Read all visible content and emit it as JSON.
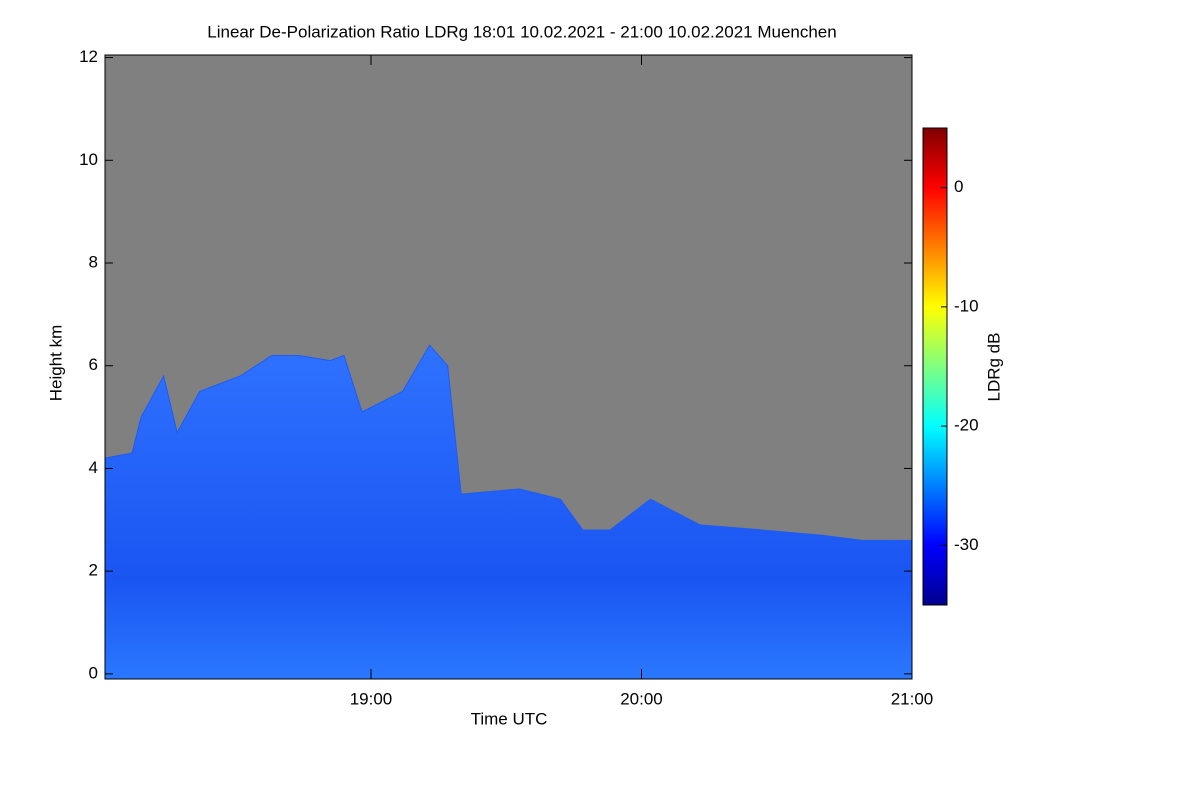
{
  "chart_data": {
    "type": "heatmap",
    "title": "Linear De-Polarization Ratio LDRg   18:01 10.02.2021 - 21:00 10.02.2021 Muenchen",
    "xlabel": "Time UTC",
    "ylabel": "Height km",
    "xlim": [
      1081,
      1260
    ],
    "xticks": [
      {
        "value": 1140,
        "label": "19:00"
      },
      {
        "value": 1200,
        "label": "20:00"
      },
      {
        "value": 1260,
        "label": "21:00"
      }
    ],
    "ylim": [
      -0.1,
      12.05
    ],
    "yticks": [
      0,
      2,
      4,
      6,
      8,
      10,
      12
    ],
    "background_color": "#808080",
    "x": [
      1081,
      1087,
      1089,
      1094,
      1097,
      1102,
      1111,
      1118,
      1124,
      1131,
      1134,
      1138,
      1147,
      1153,
      1157,
      1160,
      1173,
      1182,
      1187,
      1193,
      1202,
      1213,
      1227,
      1240,
      1249,
      1260
    ],
    "values": [
      4.2,
      4.3,
      5.0,
      5.8,
      4.7,
      5.5,
      5.8,
      6.2,
      6.2,
      6.1,
      6.2,
      5.1,
      5.5,
      6.4,
      6.0,
      3.5,
      3.6,
      3.4,
      2.8,
      2.8,
      3.4,
      2.9,
      2.8,
      2.7,
      2.6,
      2.6
    ],
    "color": "#1e5cf5",
    "colorbar": {
      "label": "LDRg dB",
      "clim": [
        -35,
        5
      ],
      "ticks": [
        0,
        -10,
        -20,
        -30
      ],
      "colormap": "jet"
    }
  }
}
